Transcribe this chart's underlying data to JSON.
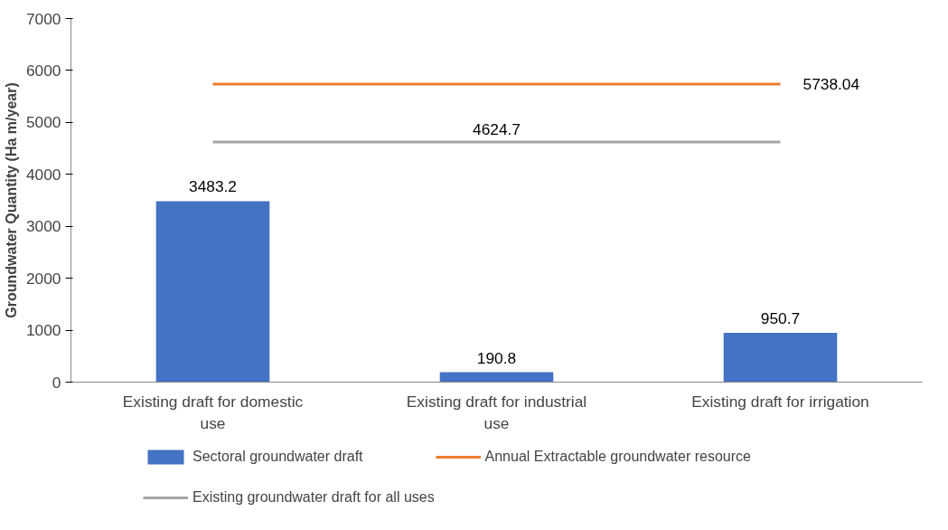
{
  "chart_data": {
    "type": "bar",
    "ylabel": "Groundwater Quantity (Ha m/year)",
    "categories": [
      "Existing draft for domestic use",
      "Existing draft for industrial use",
      "Existing draft for irrigation"
    ],
    "series": [
      {
        "name": "Sectoral groundwater draft",
        "color": "#4472c4",
        "values": [
          3483.2,
          190.8,
          950.7
        ],
        "value_labels": [
          "3483.2",
          "190.8",
          "950.7"
        ]
      },
      {
        "name": "Annual Extractable groundwater resource",
        "type": "line",
        "color": "#ed7d31",
        "values": [
          5738.04,
          5738.04,
          5738.04
        ],
        "value_labels": [
          null,
          null,
          "5738.04"
        ]
      },
      {
        "name": "Existing groundwater draft for all uses",
        "type": "line",
        "color": "#a5a5a5",
        "values": [
          4624.7,
          4624.7,
          4624.7
        ],
        "value_labels": [
          null,
          "4624.7",
          null
        ]
      }
    ],
    "ylim": [
      0,
      7000
    ],
    "yticks": [
      0,
      1000,
      2000,
      3000,
      4000,
      5000,
      6000,
      7000
    ],
    "grid": false,
    "legend": "bottom",
    "marker": "none",
    "line_style": "solid"
  }
}
